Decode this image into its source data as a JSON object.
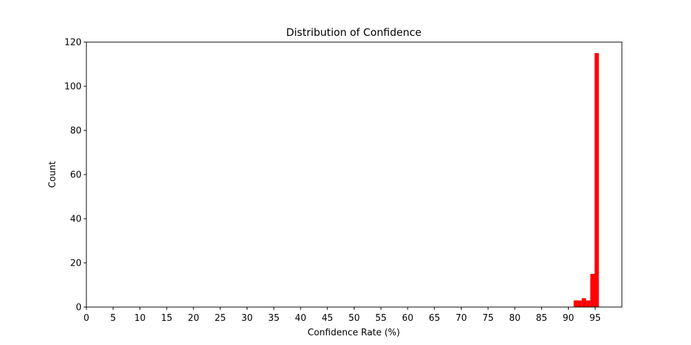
{
  "chart_data": {
    "type": "bar",
    "title": "Distribution of Confidence",
    "xlabel": "Confidence Rate (%)",
    "ylabel": "Count",
    "xlim": [
      0,
      100
    ],
    "ylim": [
      0,
      120
    ],
    "xticks": [
      0,
      5,
      10,
      15,
      20,
      25,
      30,
      35,
      40,
      45,
      50,
      55,
      60,
      65,
      70,
      75,
      80,
      85,
      90,
      95
    ],
    "yticks": [
      0,
      20,
      40,
      60,
      80,
      100,
      120
    ],
    "bar_color": "#ff0000",
    "grid": false,
    "bins": [
      {
        "start": 91.0,
        "end": 91.8,
        "count": 3
      },
      {
        "start": 91.8,
        "end": 92.5,
        "count": 3
      },
      {
        "start": 92.5,
        "end": 93.3,
        "count": 4
      },
      {
        "start": 93.3,
        "end": 94.1,
        "count": 3
      },
      {
        "start": 94.1,
        "end": 94.9,
        "count": 15
      },
      {
        "start": 94.9,
        "end": 95.7,
        "count": 115
      }
    ]
  }
}
